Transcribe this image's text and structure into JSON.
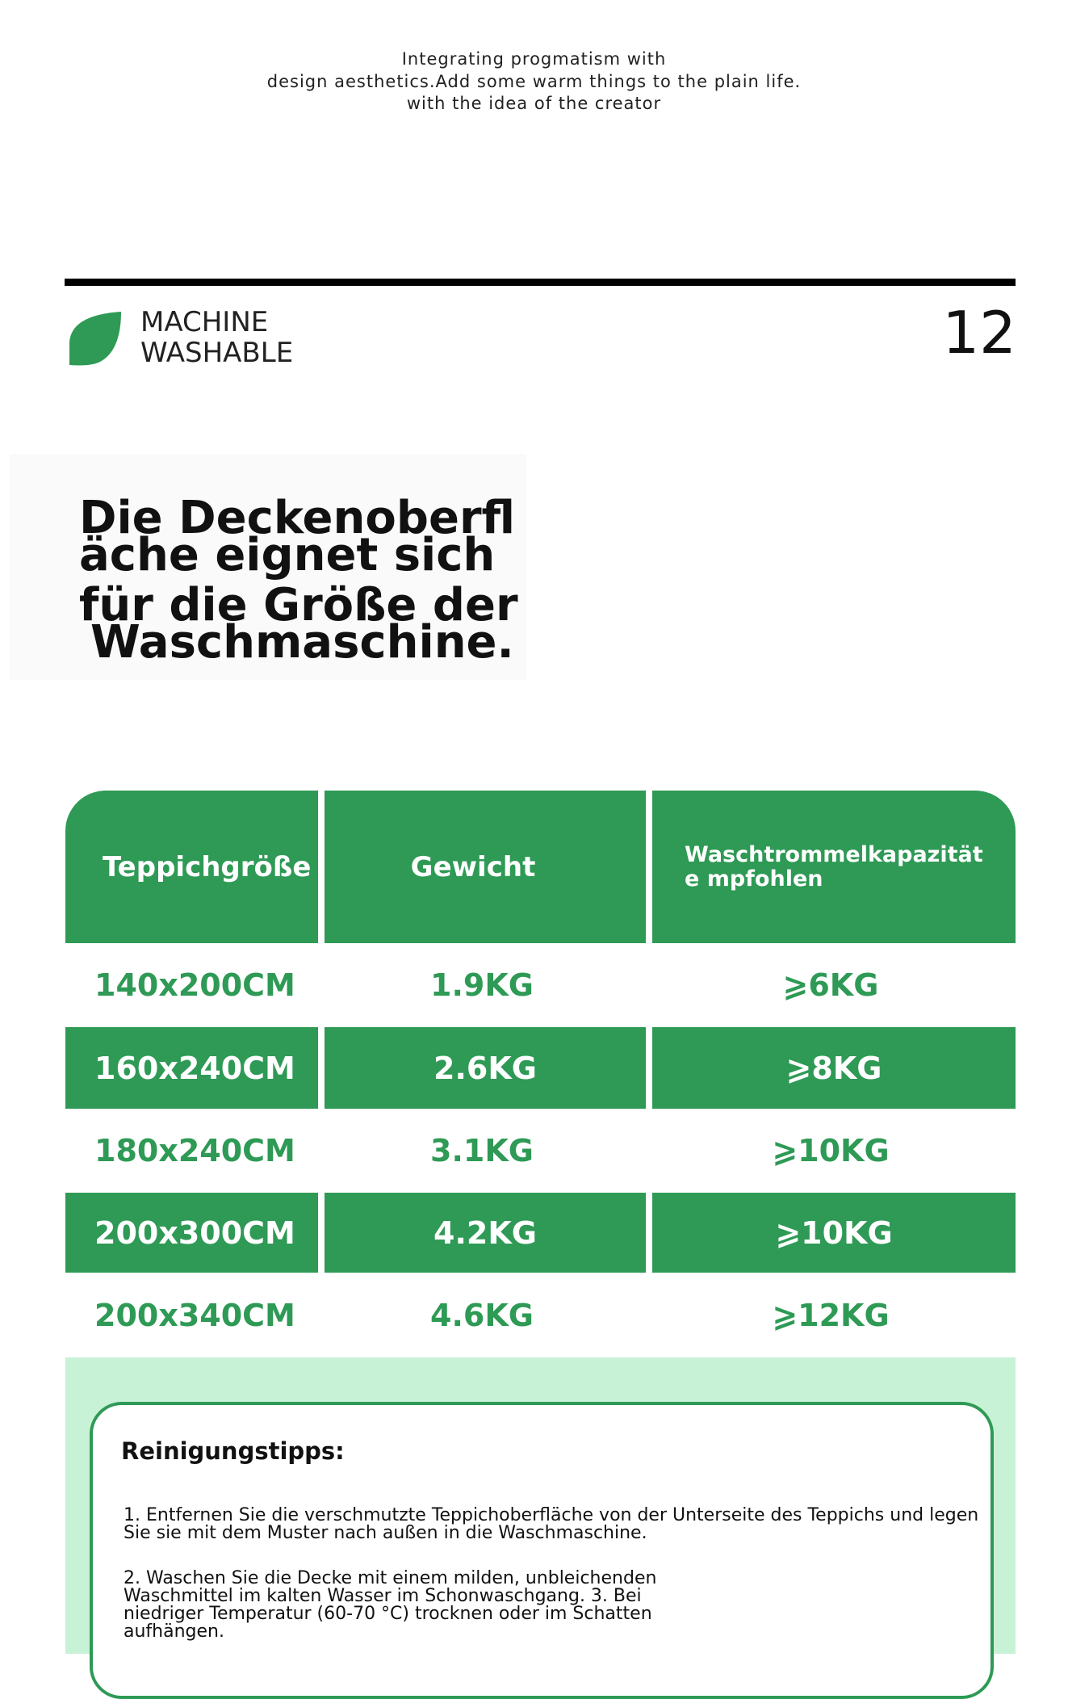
{
  "header": {
    "tagline": [
      "Integrating progmatism with",
      "design aesthetics.Add some warm things to the plain life.",
      "with the idea of the creator"
    ]
  },
  "section": {
    "label": [
      "MACHINE",
      "WASHABLE"
    ],
    "number": "12"
  },
  "heading": {
    "lines": [
      "Die Deckenoberfl",
      "äche eignet sich",
      "für die Größe der",
      "Waschmaschine."
    ]
  },
  "table": {
    "headers": [
      "Teppichgröße",
      "Gewicht",
      "Waschtrommelkapazität e mpfohlen"
    ],
    "rows": [
      [
        "140x200CM",
        "1.9KG",
        "⩾6KG"
      ],
      [
        "160x240CM",
        "2.6KG",
        "⩾8KG"
      ],
      [
        "180x240CM",
        "3.1KG",
        "⩾10KG"
      ],
      [
        "200x300CM",
        "4.2KG",
        "⩾10KG"
      ],
      [
        "200x340CM",
        "4.6KG",
        "⩾12KG"
      ]
    ]
  },
  "tips": {
    "title": "Reinigungstipps:",
    "items": [
      "1. Entfernen Sie die verschmutzte Teppichoberfläche von der Unterseite des Teppichs und legen Sie sie mit dem Muster nach außen in die Waschmaschine.",
      "2. Waschen Sie die Decke mit einem milden, unbleichenden Waschmittel im kalten Wasser im Schonwaschgang. 3. Bei niedriger Temperatur (60-70 °C) trocknen oder im Schatten aufhängen."
    ]
  }
}
